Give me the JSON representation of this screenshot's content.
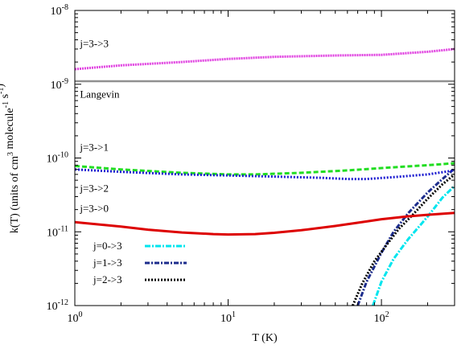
{
  "chart_data": {
    "type": "line",
    "xlabel": "T (K)",
    "ylabel": "k(T) (units of cm3 molecule-1 s-1)",
    "x_scale": "log",
    "y_scale": "log",
    "xlim": [
      1,
      300
    ],
    "ylim": [
      1e-12,
      1e-08
    ],
    "x_ticks": [
      {
        "value": 1,
        "base": "10",
        "exp": "0"
      },
      {
        "value": 10,
        "base": "10",
        "exp": "1"
      },
      {
        "value": 100,
        "base": "10",
        "exp": "2"
      }
    ],
    "y_ticks": [
      {
        "value": 1e-12,
        "base": "10",
        "exp": "-12"
      },
      {
        "value": 1e-11,
        "base": "10",
        "exp": "-11"
      },
      {
        "value": 1e-10,
        "base": "10",
        "exp": "-10"
      },
      {
        "value": 1e-09,
        "base": "10",
        "exp": "-9"
      },
      {
        "value": 1e-08,
        "base": "10",
        "exp": "-8"
      }
    ],
    "grid": false,
    "legend_position": "bottom-left",
    "series": [
      {
        "name": "j=0->3",
        "legend": true,
        "color": "#00e5ee",
        "dash": "7,2,2,2",
        "points": [
          [
            88,
            1e-12
          ],
          [
            100,
            2.1e-12
          ],
          [
            120,
            4.3e-12
          ],
          [
            150,
            8e-12
          ],
          [
            200,
            1.6e-11
          ],
          [
            250,
            2.9e-11
          ],
          [
            300,
            4.2e-11
          ]
        ]
      },
      {
        "name": "j=1->3",
        "legend": true,
        "color": "#1c2c8c",
        "dash": "6,2,2,2",
        "points": [
          [
            70,
            1e-12
          ],
          [
            80,
            2.1e-12
          ],
          [
            100,
            5.2e-12
          ],
          [
            120,
            1e-11
          ],
          [
            150,
            1.8e-11
          ],
          [
            200,
            3.4e-11
          ],
          [
            250,
            5.2e-11
          ],
          [
            300,
            7.2e-11
          ]
        ]
      },
      {
        "name": "j=2->3",
        "legend": true,
        "color": "#000000",
        "dash": "2,2",
        "points": [
          [
            65,
            1e-12
          ],
          [
            75,
            2e-12
          ],
          [
            90,
            4e-12
          ],
          [
            110,
            7e-12
          ],
          [
            130,
            1.1e-11
          ],
          [
            160,
            1.7e-11
          ],
          [
            200,
            2.8e-11
          ],
          [
            250,
            4.4e-11
          ],
          [
            300,
            6e-11
          ]
        ]
      },
      {
        "name": "j=3->3",
        "legend": false,
        "color": "#e040e0",
        "dash": "2,1",
        "points": [
          [
            1,
            1.6e-09
          ],
          [
            2,
            1.8e-09
          ],
          [
            5,
            2e-09
          ],
          [
            10,
            2.2e-09
          ],
          [
            20,
            2.35e-09
          ],
          [
            50,
            2.45e-09
          ],
          [
            100,
            2.5e-09
          ],
          [
            200,
            2.75e-09
          ],
          [
            300,
            3e-09
          ]
        ]
      },
      {
        "name": "Langevin",
        "legend": false,
        "color": "#909090",
        "dash": "",
        "points": [
          [
            1,
            1.1e-09
          ],
          [
            300,
            1.1e-09
          ]
        ]
      },
      {
        "name": "j=3->1",
        "legend": false,
        "color": "#22dd22",
        "dash": "6,3",
        "points": [
          [
            1,
            7.8e-11
          ],
          [
            2,
            7e-11
          ],
          [
            5,
            6.3e-11
          ],
          [
            10,
            6e-11
          ],
          [
            15,
            6e-11
          ],
          [
            30,
            6.3e-11
          ],
          [
            60,
            6.8e-11
          ],
          [
            100,
            7.3e-11
          ],
          [
            200,
            8e-11
          ],
          [
            300,
            8.5e-11
          ]
        ]
      },
      {
        "name": "j=3->2",
        "legend": false,
        "color": "#1a1ad0",
        "dash": "2,2",
        "points": [
          [
            1,
            7e-11
          ],
          [
            2,
            6.5e-11
          ],
          [
            5,
            6e-11
          ],
          [
            10,
            5.8e-11
          ],
          [
            20,
            5.6e-11
          ],
          [
            40,
            5.4e-11
          ],
          [
            60,
            5.2e-11
          ],
          [
            80,
            5.2e-11
          ],
          [
            120,
            5.5e-11
          ],
          [
            200,
            6e-11
          ],
          [
            300,
            6.8e-11
          ]
        ]
      },
      {
        "name": "j=3->0",
        "legend": false,
        "color": "#dd0000",
        "dash": "",
        "points": [
          [
            1,
            1.35e-11
          ],
          [
            2,
            1.18e-11
          ],
          [
            3,
            1.07e-11
          ],
          [
            5,
            9.8e-12
          ],
          [
            8,
            9.3e-12
          ],
          [
            10,
            9.2e-12
          ],
          [
            15,
            9.3e-12
          ],
          [
            20,
            9.7e-12
          ],
          [
            30,
            1.05e-11
          ],
          [
            50,
            1.2e-11
          ],
          [
            80,
            1.38e-11
          ],
          [
            100,
            1.48e-11
          ],
          [
            150,
            1.62e-11
          ],
          [
            200,
            1.7e-11
          ],
          [
            300,
            1.8e-11
          ]
        ]
      }
    ],
    "annotations": [
      {
        "text": "j=3->3",
        "x": 1.08,
        "y": 3.2e-09
      },
      {
        "text": "Langevin",
        "x": 1.08,
        "y": 6.6e-10
      },
      {
        "text": "j=3->1",
        "x": 1.08,
        "y": 1.25e-10
      },
      {
        "text": "j=3->2",
        "x": 1.08,
        "y": 3.5e-11
      },
      {
        "text": "j=3->0",
        "x": 1.08,
        "y": 1.85e-11
      }
    ]
  }
}
